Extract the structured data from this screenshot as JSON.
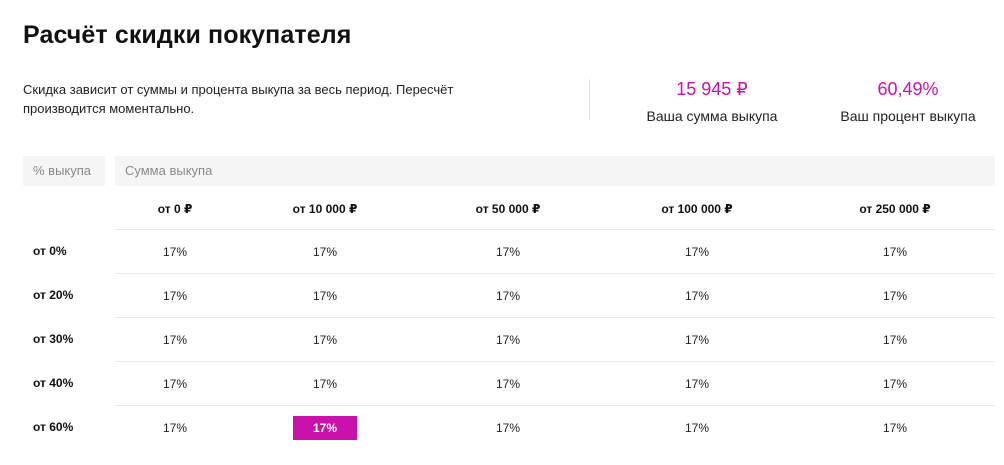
{
  "title": "Расчёт скидки покупателя",
  "description": "Скидка зависит от суммы и процента выкупа за весь период. Пересчёт производится моментально.",
  "stats": {
    "sum_value": "15 945 ₽",
    "sum_label": "Ваша сумма выкупа",
    "pct_value": "60,49%",
    "pct_label": "Ваш процент выкупа"
  },
  "accent_color": "#cb11ab",
  "table": {
    "pct_header": "% выкупа",
    "sum_header": "Сумма выкупа",
    "columns": [
      "от 0 ₽",
      "от 10 000 ₽",
      "от 50 000 ₽",
      "от 100 000 ₽",
      "от 250 000 ₽"
    ],
    "rows": [
      {
        "label": "от 0%",
        "cells": [
          "17%",
          "17%",
          "17%",
          "17%",
          "17%"
        ]
      },
      {
        "label": "от 20%",
        "cells": [
          "17%",
          "17%",
          "17%",
          "17%",
          "17%"
        ]
      },
      {
        "label": "от 30%",
        "cells": [
          "17%",
          "17%",
          "17%",
          "17%",
          "17%"
        ]
      },
      {
        "label": "от 40%",
        "cells": [
          "17%",
          "17%",
          "17%",
          "17%",
          "17%"
        ]
      },
      {
        "label": "от 60%",
        "cells": [
          "17%",
          "17%",
          "17%",
          "17%",
          "17%"
        ]
      }
    ],
    "active_cell": {
      "row": 4,
      "col": 1
    }
  }
}
